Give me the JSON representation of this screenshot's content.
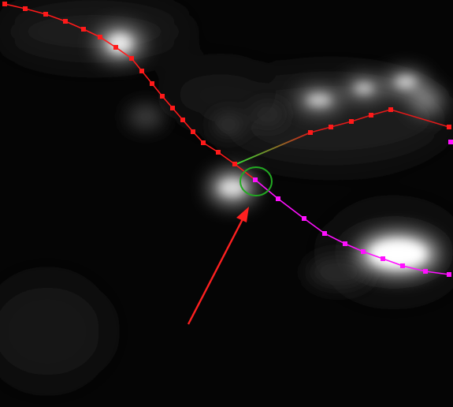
{
  "image": {
    "description_tag": "microscopy-trace-overlay"
  },
  "colors": {
    "background": "#050505",
    "blob": "#ffffff",
    "red_trace": "#ff1a1a",
    "magenta_trace": "#ff10ff",
    "branch_start": "#33dd33",
    "branch_end": "#d11a1a",
    "junction_circle": "#22aa22",
    "arrow": "#ff2020"
  },
  "overlay": {
    "traces": [
      {
        "name": "red-trace-upper",
        "color": "red"
      },
      {
        "name": "red-trace-branch",
        "color": "red"
      },
      {
        "name": "magenta-trace-lower",
        "color": "magenta"
      }
    ],
    "junction_marker": "green-circle",
    "pointer": "red-arrow"
  }
}
